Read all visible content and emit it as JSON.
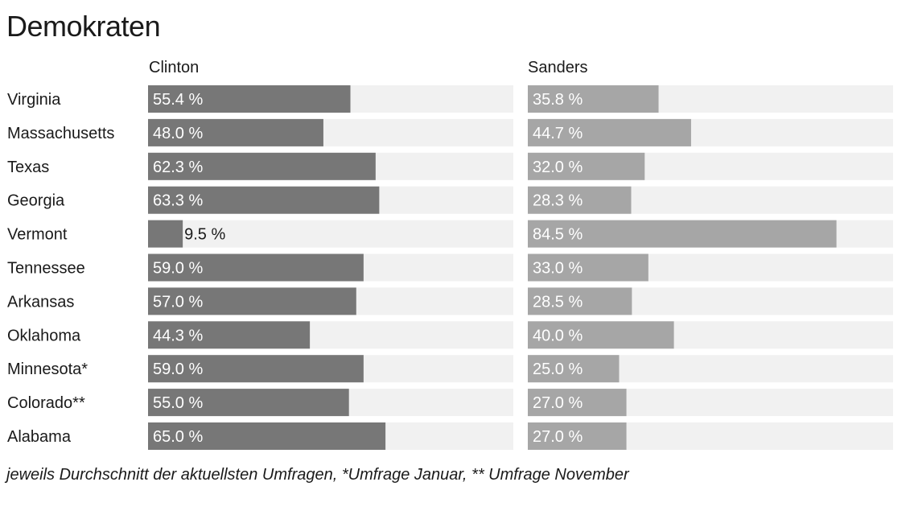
{
  "title": "Demokraten",
  "footnote": "jeweils Durchschnitt der aktuellsten Umfragen, *Umfrage Januar, ** Umfrage November",
  "chart_data": {
    "type": "bar",
    "orientation": "horizontal",
    "unit": "%",
    "categories": [
      "Virginia",
      "Massachusetts",
      "Texas",
      "Georgia",
      "Vermont",
      "Tennessee",
      "Arkansas",
      "Oklahoma",
      "Minnesota*",
      "Colorado**",
      "Alabama"
    ],
    "series": [
      {
        "name": "Clinton",
        "color": "#777777",
        "values": [
          55.4,
          48.0,
          62.3,
          63.3,
          9.5,
          59.0,
          57.0,
          44.3,
          59.0,
          55.0,
          65.0
        ],
        "labels": [
          "55.4 %",
          "48.0 %",
          "62.3 %",
          "63.3 %",
          "9.5 %",
          "59.0 %",
          "57.0 %",
          "44.3 %",
          "59.0 %",
          "55.0 %",
          "65.0 %"
        ]
      },
      {
        "name": "Sanders",
        "color": "#a6a6a6",
        "values": [
          35.8,
          44.7,
          32.0,
          28.3,
          84.5,
          33.0,
          28.5,
          40.0,
          25.0,
          27.0,
          27.0
        ],
        "labels": [
          "35.8 %",
          "44.7 %",
          "32.0 %",
          "28.3 %",
          "84.5 %",
          "33.0 %",
          "28.5 %",
          "40.0 %",
          "25.0 %",
          "27.0 %",
          "27.0 %"
        ]
      }
    ],
    "background_color": "#f1f1f1",
    "grid": false,
    "legend": "none"
  }
}
